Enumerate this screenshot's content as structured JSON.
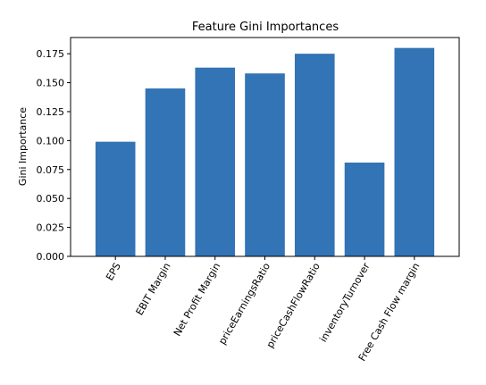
{
  "chart_data": {
    "type": "bar",
    "title": "Feature Gini Importances",
    "xlabel": "",
    "ylabel": "Gini Importance",
    "categories": [
      "EPS",
      "EBIT Margin",
      "Net Profit Margin",
      "priceEarningsRatio",
      "priceCashFlowRatio",
      "inventoryTurnover",
      "Free Cash Flow margin"
    ],
    "values": [
      0.099,
      0.145,
      0.163,
      0.158,
      0.175,
      0.081,
      0.18
    ],
    "ylim": [
      0,
      0.189
    ],
    "yticks": [
      "0.000",
      "0.025",
      "0.050",
      "0.075",
      "0.100",
      "0.125",
      "0.150",
      "0.175"
    ],
    "bar_color": "#3274b5",
    "grid": false,
    "legend": false
  }
}
